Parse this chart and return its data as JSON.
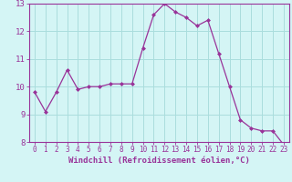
{
  "x": [
    0,
    1,
    2,
    3,
    4,
    5,
    6,
    7,
    8,
    9,
    10,
    11,
    12,
    13,
    14,
    15,
    16,
    17,
    18,
    19,
    20,
    21,
    22,
    23
  ],
  "y": [
    9.8,
    9.1,
    9.8,
    10.6,
    9.9,
    10.0,
    10.0,
    10.1,
    10.1,
    10.1,
    11.4,
    12.6,
    13.0,
    12.7,
    12.5,
    12.2,
    12.4,
    11.2,
    10.0,
    8.8,
    8.5,
    8.4,
    8.4,
    7.9
  ],
  "line_color": "#993399",
  "marker_color": "#993399",
  "bg_color": "#d4f5f5",
  "grid_color": "#aadddd",
  "xlabel": "Windchill (Refroidissement éolien,°C)",
  "ylim": [
    8,
    13
  ],
  "xlim_min": -0.5,
  "xlim_max": 23.5,
  "yticks": [
    8,
    9,
    10,
    11,
    12,
    13
  ],
  "xticks": [
    0,
    1,
    2,
    3,
    4,
    5,
    6,
    7,
    8,
    9,
    10,
    11,
    12,
    13,
    14,
    15,
    16,
    17,
    18,
    19,
    20,
    21,
    22,
    23
  ],
  "tick_fontsize": 5.5,
  "xlabel_fontsize": 6.5,
  "axis_text_color": "#993399",
  "linewidth": 0.9,
  "markersize": 2.0
}
